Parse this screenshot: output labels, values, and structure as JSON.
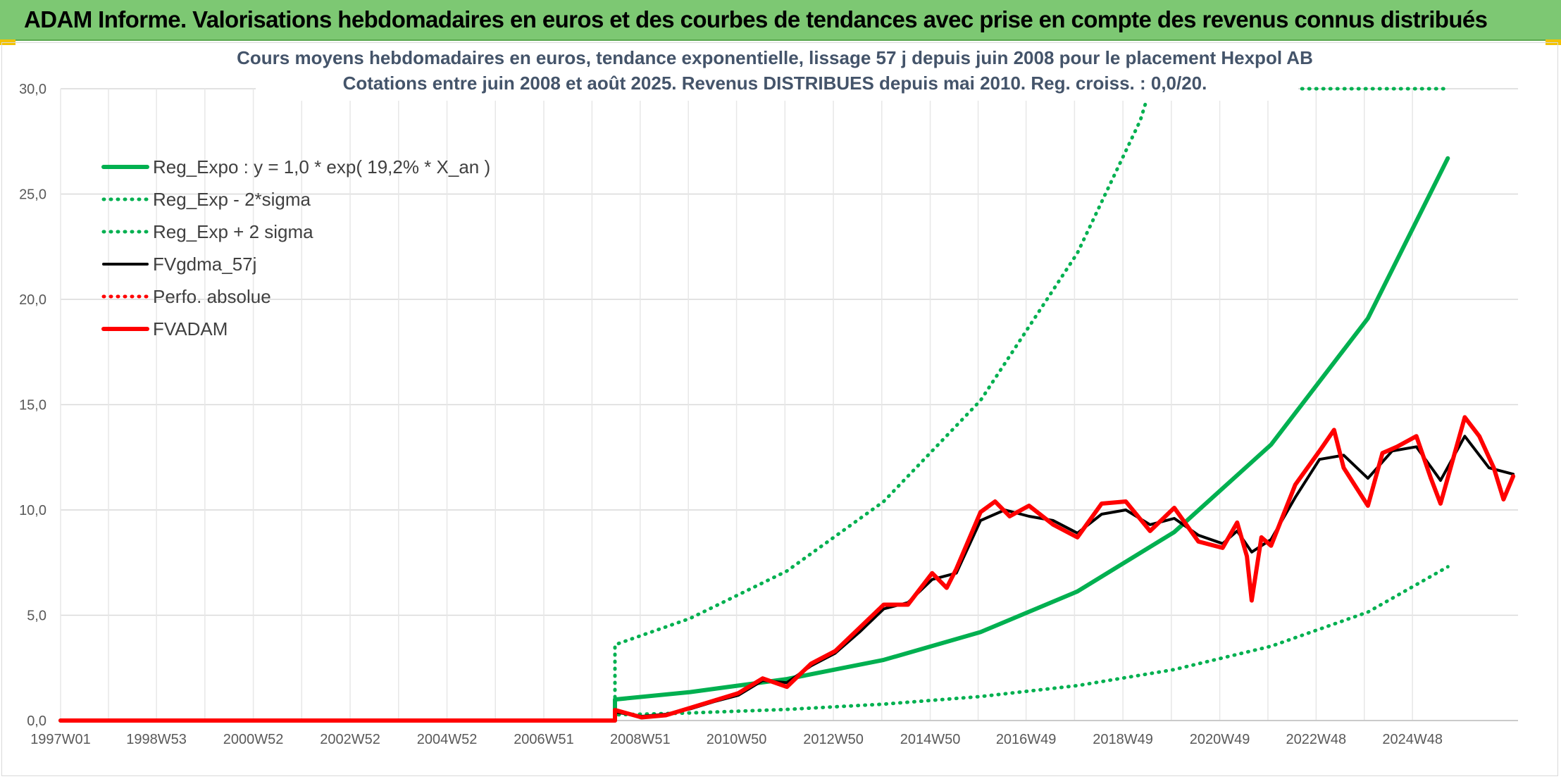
{
  "header": {
    "title": "ADAM Informe. Valorisations hebdomadaires en euros et des courbes de tendances avec prise en compte des revenus connus distribués"
  },
  "colors": {
    "header_bg": "#7dc873",
    "reg_green": "#00b050",
    "fvgdma_black": "#000000",
    "fvadam_red": "#ff0000",
    "grid": "#d9d9d9",
    "title_text": "#44546a"
  },
  "chart_data": {
    "type": "line",
    "title": "Cours moyens hebdomadaires en euros, tendance exponentielle, lissage 57 j depuis juin 2008 pour le placement Hexpol AB",
    "subtitle": "Cotations entre juin 2008 et août 2025. Revenus DISTRIBUES depuis mai 2010. Reg. croiss. : 0,0/20.",
    "xlabel": "",
    "ylabel": "",
    "x_start": "1997W01",
    "x_end": "2025W35",
    "x_ticks": [
      "1997W01",
      "1998W53",
      "2000W52",
      "2002W52",
      "2004W52",
      "2006W51",
      "2008W51",
      "2010W50",
      "2012W50",
      "2014W50",
      "2016W49",
      "2018W49",
      "2020W49",
      "2022W48",
      "2024W48"
    ],
    "x_tick_years": [
      1997.0,
      1998.98,
      2000.98,
      2002.98,
      2004.98,
      2006.98,
      2008.97,
      2010.96,
      2012.96,
      2014.96,
      2016.94,
      2018.94,
      2020.94,
      2022.93,
      2024.92
    ],
    "ylim": [
      0,
      30
    ],
    "y_ticks": [
      0,
      5,
      10,
      15,
      20,
      25,
      30
    ],
    "y_tick_labels": [
      "0,0",
      "5,0",
      "10,0",
      "15,0",
      "20,0",
      "25,0",
      "30,0"
    ],
    "grid": true,
    "legend_position": "top-left",
    "series": [
      {
        "name": "Reg_Expo : y = 1,0 * exp( 19,2% *  X_an )",
        "style": "solid-thick",
        "color": "#00b050",
        "points": [
          [
            1997.0,
            0
          ],
          [
            2008.45,
            0
          ],
          [
            2008.45,
            1.0
          ],
          [
            2010,
            1.35
          ],
          [
            2012,
            1.97
          ],
          [
            2014,
            2.88
          ],
          [
            2016,
            4.2
          ],
          [
            2018,
            6.13
          ],
          [
            2020,
            8.95
          ],
          [
            2022,
            13.1
          ],
          [
            2024,
            19.1
          ],
          [
            2025.65,
            26.7
          ]
        ]
      },
      {
        "name": "Reg_Exp - 2*sigma",
        "style": "dotted",
        "color": "#00b050",
        "points": [
          [
            1997.0,
            0
          ],
          [
            2008.45,
            0
          ],
          [
            2008.45,
            0.27
          ],
          [
            2010,
            0.36
          ],
          [
            2012,
            0.53
          ],
          [
            2014,
            0.78
          ],
          [
            2016,
            1.14
          ],
          [
            2018,
            1.66
          ],
          [
            2020,
            2.42
          ],
          [
            2022,
            3.53
          ],
          [
            2024,
            5.15
          ],
          [
            2025.65,
            7.3
          ]
        ]
      },
      {
        "name": "Reg_Exp + 2 sigma",
        "style": "dotted",
        "color": "#00b050",
        "points": [
          [
            1997.0,
            0
          ],
          [
            2008.45,
            0
          ],
          [
            2008.45,
            3.6
          ],
          [
            2010,
            4.85
          ],
          [
            2012,
            7.1
          ],
          [
            2014,
            10.4
          ],
          [
            2016,
            15.2
          ],
          [
            2018,
            22.2
          ],
          [
            2019.3,
            28.5
          ],
          [
            2019.5,
            30
          ],
          [
            2025.65,
            30
          ]
        ]
      },
      {
        "name": "FVgdma_57j",
        "style": "solid",
        "color": "#000000",
        "points": [
          [
            1997.0,
            0
          ],
          [
            2008.45,
            0
          ],
          [
            2008.45,
            0.4
          ],
          [
            2009.0,
            0.2
          ],
          [
            2009.5,
            0.3
          ],
          [
            2010.0,
            0.55
          ],
          [
            2010.5,
            0.9
          ],
          [
            2011.0,
            1.2
          ],
          [
            2011.5,
            1.9
          ],
          [
            2012.0,
            1.8
          ],
          [
            2012.5,
            2.6
          ],
          [
            2013.0,
            3.2
          ],
          [
            2013.5,
            4.2
          ],
          [
            2014.0,
            5.3
          ],
          [
            2014.5,
            5.6
          ],
          [
            2015.0,
            6.7
          ],
          [
            2015.5,
            7.0
          ],
          [
            2016.0,
            9.5
          ],
          [
            2016.5,
            10.0
          ],
          [
            2017.0,
            9.7
          ],
          [
            2017.5,
            9.5
          ],
          [
            2018.0,
            8.9
          ],
          [
            2018.5,
            9.8
          ],
          [
            2019.0,
            10.0
          ],
          [
            2019.5,
            9.3
          ],
          [
            2020.0,
            9.6
          ],
          [
            2020.5,
            8.8
          ],
          [
            2021.0,
            8.4
          ],
          [
            2021.3,
            9.0
          ],
          [
            2021.6,
            8.0
          ],
          [
            2022.0,
            8.6
          ],
          [
            2022.5,
            10.6
          ],
          [
            2023.0,
            12.4
          ],
          [
            2023.5,
            12.6
          ],
          [
            2024.0,
            11.5
          ],
          [
            2024.5,
            12.8
          ],
          [
            2025.0,
            13.0
          ],
          [
            2025.5,
            11.4
          ],
          [
            2026.0,
            13.5
          ],
          [
            2026.5,
            12.0
          ],
          [
            2027.0,
            11.7
          ]
        ]
      },
      {
        "name": "Perfo. absolue",
        "style": "dotted",
        "color": "#ff0000",
        "points": [
          [
            1997.0,
            0
          ],
          [
            2008.45,
            0
          ]
        ]
      },
      {
        "name": "FVADAM",
        "style": "solid-thick",
        "color": "#ff0000",
        "points": [
          [
            1997.0,
            0
          ],
          [
            2008.45,
            0
          ],
          [
            2008.45,
            0.5
          ],
          [
            2009.0,
            0.15
          ],
          [
            2009.5,
            0.25
          ],
          [
            2010.0,
            0.6
          ],
          [
            2010.5,
            0.95
          ],
          [
            2011.0,
            1.3
          ],
          [
            2011.5,
            2.0
          ],
          [
            2012.0,
            1.6
          ],
          [
            2012.5,
            2.7
          ],
          [
            2013.0,
            3.3
          ],
          [
            2013.5,
            4.4
          ],
          [
            2014.0,
            5.5
          ],
          [
            2014.5,
            5.5
          ],
          [
            2015.0,
            7.0
          ],
          [
            2015.3,
            6.3
          ],
          [
            2015.5,
            7.2
          ],
          [
            2016.0,
            9.9
          ],
          [
            2016.3,
            10.4
          ],
          [
            2016.6,
            9.7
          ],
          [
            2017.0,
            10.2
          ],
          [
            2017.5,
            9.3
          ],
          [
            2018.0,
            8.7
          ],
          [
            2018.5,
            10.3
          ],
          [
            2019.0,
            10.4
          ],
          [
            2019.5,
            9.0
          ],
          [
            2020.0,
            10.1
          ],
          [
            2020.5,
            8.5
          ],
          [
            2021.0,
            8.2
          ],
          [
            2021.3,
            9.4
          ],
          [
            2021.5,
            7.8
          ],
          [
            2021.6,
            5.7
          ],
          [
            2021.8,
            8.7
          ],
          [
            2022.0,
            8.3
          ],
          [
            2022.5,
            11.2
          ],
          [
            2023.0,
            12.8
          ],
          [
            2023.3,
            13.8
          ],
          [
            2023.5,
            12.0
          ],
          [
            2024.0,
            10.2
          ],
          [
            2024.3,
            12.7
          ],
          [
            2024.6,
            13.0
          ],
          [
            2025.0,
            13.5
          ],
          [
            2025.3,
            11.5
          ],
          [
            2025.5,
            10.3
          ],
          [
            2026.0,
            14.4
          ],
          [
            2026.3,
            13.5
          ],
          [
            2026.6,
            12.0
          ],
          [
            2026.8,
            10.5
          ],
          [
            2027.0,
            11.6
          ]
        ]
      }
    ]
  }
}
